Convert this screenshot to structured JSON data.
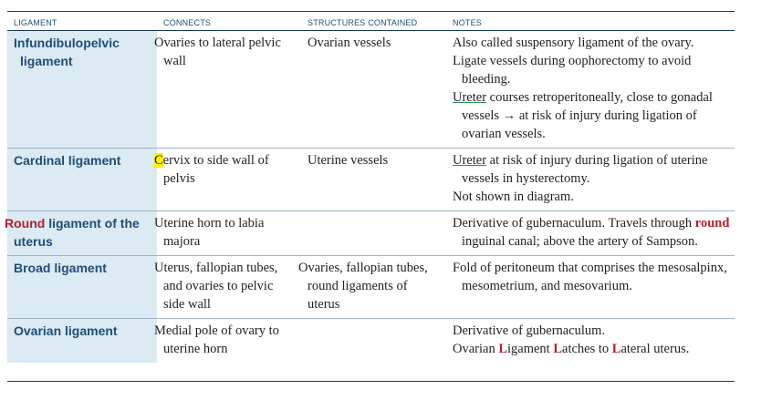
{
  "headers": {
    "ligament": "LIGAMENT",
    "connects": "CONNECTS",
    "structures": "STRUCTURES CONTAINED",
    "notes": "NOTES"
  },
  "rows": [
    {
      "name_a": "Infundibulopelvic",
      "name_b": "ligament",
      "connects": "Ovaries to lateral pelvic wall",
      "structures": "Ovarian vessels",
      "notes_1": "Also called suspensory ligament of the ovary.",
      "notes_2": "Ligate vessels during oophorectomy to avoid bleeding.",
      "notes_3_key": "Ureter",
      "notes_3_rest": " courses retroperitoneally, close to gonadal vessels → at risk of injury during ligation of ovarian vessels."
    },
    {
      "name_a": "Cardinal ligament",
      "connects_hl": "C",
      "connects_rest": "ervix to side wall of pelvis",
      "structures": "Uterine vessels",
      "notes_1_key": "Ureter",
      "notes_1_rest": " at risk of injury during ligation of uterine vessels in hysterectomy.",
      "notes_2": "Not shown in diagram."
    },
    {
      "name_red": "Round",
      "name_rest": " ligament of the uterus",
      "connects": "Uterine horn to labia majora",
      "structures": "",
      "notes_a": "Derivative of gubernaculum. Travels through ",
      "notes_red": "round",
      "notes_b": " inguinal canal; above the artery of Sampson."
    },
    {
      "name_a": "Broad ligament",
      "connects": "Uterus, fallopian tubes, and ovaries to pelvic side wall",
      "structures": "Ovaries, fallopian tubes, round ligaments of uterus",
      "notes_1": "Fold of peritoneum that comprises the mesosalpinx, mesometrium, and mesovarium."
    },
    {
      "name_a": "Ovarian ligament",
      "connects": "Medial pole of ovary to uterine horn",
      "structures": "",
      "notes_1": "Derivative of gubernaculum.",
      "notes_2_p1": "Ovarian ",
      "notes_2_L1": "L",
      "notes_2_p2": "igament ",
      "notes_2_L2": "L",
      "notes_2_p3": "atches to ",
      "notes_2_L3": "L",
      "notes_2_p4": "ateral uterus."
    }
  ]
}
